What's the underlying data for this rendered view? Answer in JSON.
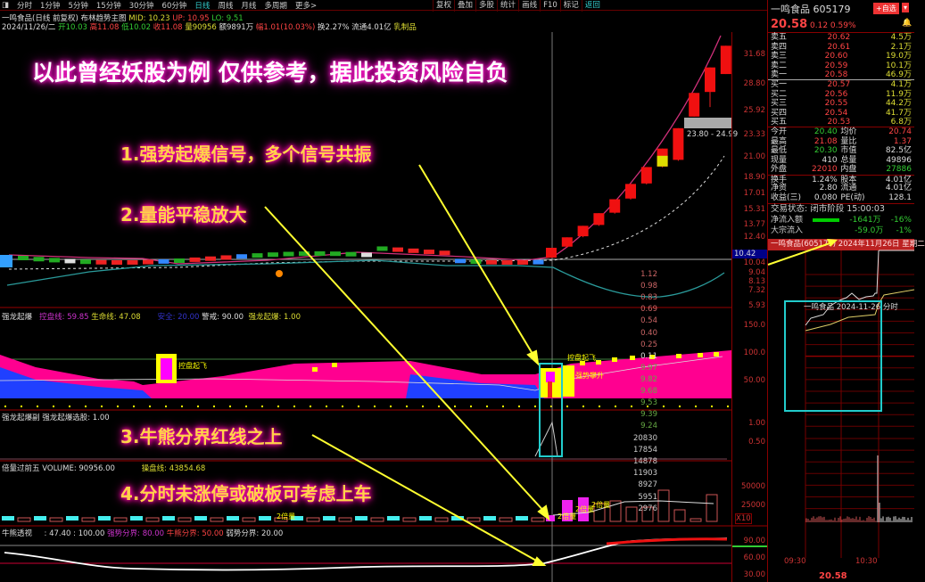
{
  "toolbar": {
    "periods": [
      "分时",
      "1分钟",
      "5分钟",
      "15分钟",
      "30分钟",
      "60分钟",
      "日线",
      "周线",
      "月线",
      "多周期",
      "更多>"
    ],
    "active": "日线",
    "right_tools": [
      "复权",
      "叠加",
      "多股",
      "统计",
      "画线",
      "F10",
      "标记",
      "返回"
    ]
  },
  "header": {
    "title": "一鸣食品(日线 前复权)",
    "indicator": "布林趋势主图",
    "mid": "MID: 10.23",
    "up": "UP: 10.95",
    "lo": "LO: 9.51",
    "date": "2024/11/26/二",
    "open": "开10.03",
    "high": "高11.08",
    "low": "低10.02",
    "close": "收11.08",
    "vol": "量90956",
    "amount": "额9891万",
    "change": "幅1.01(10.03%)",
    "turnover": "换2.27%",
    "float": "流通4.01亿",
    "sector": "乳制品"
  },
  "annotations": {
    "title": "以此曾经妖股为例   仅供参考，据此投资风险自负",
    "p1": "1.强势起爆信号，多个信号共振",
    "p2": "2.量能平稳放大",
    "p3": "3.牛熊分界红线之上",
    "p4": "4.分时未涨停或破板可考虑上车"
  },
  "main_axis": [
    "31.68",
    "28.80",
    "25.92",
    "23.33",
    "21.00",
    "18.90",
    "17.01",
    "15.31",
    "13.77",
    "12.40",
    "10.04",
    "9.04",
    "8.13",
    "7.32",
    "5.93"
  ],
  "current_price_tag": "10.42",
  "gap_label": "23.80 - 24.99",
  "chart_data": {
    "type": "candlestick",
    "candles": [
      {
        "o": 10.03,
        "c": 11.08,
        "h": 11.08,
        "l": 10.02
      },
      {
        "o": 11.2,
        "c": 12.19,
        "h": 12.19,
        "l": 11.1
      },
      {
        "o": 12.3,
        "c": 13.41,
        "h": 13.41,
        "l": 12.2
      },
      {
        "o": 13.5,
        "c": 14.75,
        "h": 14.75,
        "l": 13.4
      },
      {
        "o": 14.8,
        "c": 16.23,
        "h": 16.23,
        "l": 14.7
      },
      {
        "o": 16.3,
        "c": 17.85,
        "h": 17.85,
        "l": 16.2
      },
      {
        "o": 17.9,
        "c": 19.64,
        "h": 19.64,
        "l": 17.8
      },
      {
        "o": 19.7,
        "c": 21.6,
        "h": 21.6,
        "l": 19.6
      },
      {
        "o": 20.4,
        "c": 23.76,
        "h": 23.76,
        "l": 20.3
      },
      {
        "o": 24.99,
        "c": 27.5,
        "h": 27.5,
        "l": 24.99
      },
      {
        "o": 27.6,
        "c": 30.2,
        "h": 30.2,
        "l": 26.0
      },
      {
        "o": 29.5,
        "c": 32.5,
        "h": 32.5,
        "l": 29.5
      }
    ]
  },
  "panel1": {
    "name": "强龙起爆",
    "kpx": "控盘线: 59.85",
    "sm": "生命线: 47.08",
    "aq": "安全: 20.00",
    "jj": "警戒: 90.00",
    "qlqb": "强龙起爆: 1.00",
    "axis": [
      "150.0",
      "100.0",
      "50.00"
    ],
    "sig1": "控盘起飞",
    "sig2": "控盘起飞",
    "sig3": "强势攀升"
  },
  "panel2": {
    "name": "强龙起爆副",
    "sel": "强龙起爆选股: 1.00",
    "axis": [
      "1.00",
      "0.50"
    ]
  },
  "panel3": {
    "name": "倍量过前五",
    "vol": "VOLUME: 90956.00",
    "cp": "操盘线: 43854.68",
    "axis": [
      "50000",
      "25000",
      "X10"
    ],
    "tag1": "2倍量",
    "tag2": "2倍量",
    "tag3": "2倍量",
    "tag4": "2倍量"
  },
  "panel4": {
    "name": "牛熊透视",
    "v": ": 47.40 : 100.00",
    "qs": "强势分界: 80.00",
    "nx": "牛熊分界: 50.00",
    "rs": "弱势分界: 20.00",
    "axis": [
      "90.00",
      "60.00",
      "30.00"
    ]
  },
  "right": {
    "name": "一鸣食品",
    "code": "605179",
    "add": "+自选",
    "price": "20.58",
    "chg": "0.12",
    "pct": "0.59%",
    "sells": [
      {
        "l": "卖五",
        "p": "20.62",
        "v": "4.5万"
      },
      {
        "l": "卖四",
        "p": "20.61",
        "v": "2.1万"
      },
      {
        "l": "卖三",
        "p": "20.60",
        "v": "19.0万"
      },
      {
        "l": "卖二",
        "p": "20.59",
        "v": "10.1万"
      },
      {
        "l": "卖一",
        "p": "20.58",
        "v": "46.9万"
      }
    ],
    "buys": [
      {
        "l": "买一",
        "p": "20.57",
        "v": "4.1万"
      },
      {
        "l": "买二",
        "p": "20.56",
        "v": "11.9万"
      },
      {
        "l": "买三",
        "p": "20.55",
        "v": "44.2万"
      },
      {
        "l": "买四",
        "p": "20.54",
        "v": "41.7万"
      },
      {
        "l": "买五",
        "p": "20.53",
        "v": "6.8万"
      }
    ],
    "stats": [
      [
        "今开",
        "20.40",
        "均价",
        "20.74"
      ],
      [
        "最高",
        "21.08",
        "量比",
        "1.37"
      ],
      [
        "最低",
        "20.30",
        "市值",
        "82.5亿"
      ],
      [
        "现量",
        "410",
        "总量",
        "49896"
      ],
      [
        "外盘",
        "22010",
        "内盘",
        "27886"
      ],
      [
        "换手",
        "1.24%",
        "股本",
        "4.01亿"
      ],
      [
        "净资",
        "2.80",
        "流通",
        "4.01亿"
      ],
      [
        "收益(三)",
        "0.080",
        "PE(动)",
        "128.1"
      ]
    ],
    "status": "交易状态: 闭市阶段 15:00:03",
    "netflow_label": "净流入额",
    "netflow": "-1641万",
    "netflow_pct": "-16%",
    "block_label": "大宗流入",
    "block": "-59.0万",
    "block_pct": "-1%",
    "minute_header": "一鸣食品(605179) 2024年11月26日 星期二",
    "minute_title": "一鸣食品  2024-11-26 分时",
    "minute_axis": [
      "1.12",
      "0.98",
      "0.83",
      "0.69",
      "0.54",
      "0.40",
      "0.25",
      "0.11",
      "9.97",
      "9.82",
      "9.68",
      "9.53",
      "9.39",
      "9.24"
    ],
    "vol_axis": [
      "20830",
      "17854",
      "14878",
      "11903",
      "8927",
      "5951",
      "2976"
    ],
    "times": [
      "09:30",
      "10:30"
    ],
    "bottom_price": "20.58"
  },
  "colors": {
    "up": "#ff2020",
    "down": "#20c020",
    "accent": "#2cc",
    "glow": "#ff00cc",
    "arrow": "#ffff30"
  }
}
